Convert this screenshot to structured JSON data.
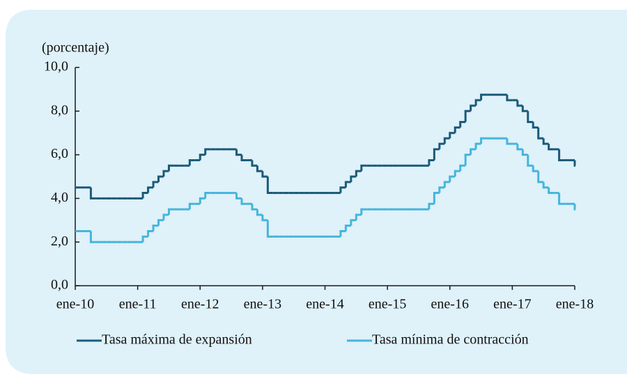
{
  "chart_data": {
    "type": "step-line",
    "y_label": "(porcentaje)",
    "categories": [
      "ene-10",
      null,
      null,
      null,
      null,
      null,
      null,
      null,
      null,
      null,
      null,
      null,
      "ene-11",
      null,
      null,
      null,
      null,
      null,
      null,
      null,
      null,
      null,
      null,
      null,
      "ene-12",
      null,
      null,
      null,
      null,
      null,
      null,
      null,
      null,
      null,
      null,
      null,
      "ene-13",
      null,
      null,
      null,
      null,
      null,
      null,
      null,
      null,
      null,
      null,
      null,
      "ene-14",
      null,
      null,
      null,
      null,
      null,
      null,
      null,
      null,
      null,
      null,
      null,
      "ene-15",
      null,
      null,
      null,
      null,
      null,
      null,
      null,
      null,
      null,
      null,
      null,
      "ene-16",
      null,
      null,
      null,
      null,
      null,
      null,
      null,
      null,
      null,
      null,
      null,
      "ene-17",
      null,
      null,
      null,
      null,
      null,
      null,
      null,
      null,
      null,
      null,
      null,
      "ene-18"
    ],
    "series": [
      {
        "name": "Tasa máxima de expansión",
        "color": "#1b5a78",
        "values": [
          4.5,
          4.5,
          4.5,
          4,
          4,
          4,
          4,
          4,
          4,
          4,
          4,
          4,
          4,
          4.25,
          4.5,
          4.75,
          5,
          5.25,
          5.5,
          5.5,
          5.5,
          5.5,
          5.75,
          5.75,
          6,
          6.25,
          6.25,
          6.25,
          6.25,
          6.25,
          6.25,
          6,
          5.75,
          5.75,
          5.5,
          5.25,
          5,
          4.25,
          4.25,
          4.25,
          4.25,
          4.25,
          4.25,
          4.25,
          4.25,
          4.25,
          4.25,
          4.25,
          4.25,
          4.25,
          4.25,
          4.5,
          4.75,
          5,
          5.25,
          5.5,
          5.5,
          5.5,
          5.5,
          5.5,
          5.5,
          5.5,
          5.5,
          5.5,
          5.5,
          5.5,
          5.5,
          5.5,
          5.75,
          6.25,
          6.5,
          6.75,
          7,
          7.25,
          7.5,
          8,
          8.25,
          8.5,
          8.75,
          8.75,
          8.75,
          8.75,
          8.75,
          8.5,
          8.5,
          8.25,
          8,
          7.5,
          7.25,
          6.75,
          6.5,
          6.25,
          6.25,
          5.75,
          5.75,
          5.75,
          5.5
        ]
      },
      {
        "name": "Tasa mínima de contracción",
        "color": "#45b5dc",
        "values": [
          2.5,
          2.5,
          2.5,
          2,
          2,
          2,
          2,
          2,
          2,
          2,
          2,
          2,
          2,
          2.25,
          2.5,
          2.75,
          3,
          3.25,
          3.5,
          3.5,
          3.5,
          3.5,
          3.75,
          3.75,
          4,
          4.25,
          4.25,
          4.25,
          4.25,
          4.25,
          4.25,
          4,
          3.75,
          3.75,
          3.5,
          3.25,
          3,
          2.25,
          2.25,
          2.25,
          2.25,
          2.25,
          2.25,
          2.25,
          2.25,
          2.25,
          2.25,
          2.25,
          2.25,
          2.25,
          2.25,
          2.5,
          2.75,
          3,
          3.25,
          3.5,
          3.5,
          3.5,
          3.5,
          3.5,
          3.5,
          3.5,
          3.5,
          3.5,
          3.5,
          3.5,
          3.5,
          3.5,
          3.75,
          4.25,
          4.5,
          4.75,
          5,
          5.25,
          5.5,
          6,
          6.25,
          6.5,
          6.75,
          6.75,
          6.75,
          6.75,
          6.75,
          6.5,
          6.5,
          6.25,
          6,
          5.5,
          5.25,
          4.75,
          4.5,
          4.25,
          4.25,
          3.75,
          3.75,
          3.75,
          3.5
        ]
      }
    ],
    "ylim": [
      0,
      10
    ],
    "yticks": [
      {
        "value": 0,
        "label": "0,0"
      },
      {
        "value": 2,
        "label": "2,0"
      },
      {
        "value": 4,
        "label": "4,0"
      },
      {
        "value": 6,
        "label": "6,0"
      },
      {
        "value": 8,
        "label": "8,0"
      },
      {
        "value": 10,
        "label": "10,0"
      }
    ]
  }
}
